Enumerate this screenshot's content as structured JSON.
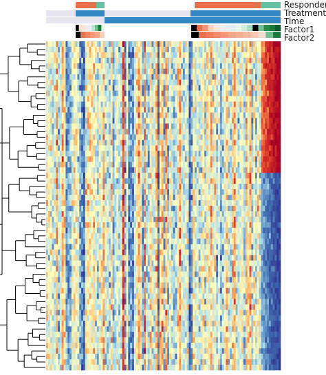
{
  "chart_data": {
    "type": "heatmap",
    "title": "",
    "xlabel": "",
    "ylabel": "",
    "annotation_tracks": [
      {
        "name": "Responder"
      },
      {
        "name": "Treatment"
      },
      {
        "name": "Time"
      },
      {
        "name": "Factor1"
      },
      {
        "name": "Factor2"
      }
    ],
    "n_rows": 60,
    "n_cols": 120,
    "row_clusters": [
      {
        "rows": [
          0,
          24
        ],
        "pattern": "warm body, cool right block"
      },
      {
        "rows": [
          24,
          60
        ],
        "pattern": "mixed body, warm right block"
      }
    ],
    "color_scale": [
      "#313695",
      "#4575b4",
      "#abd9e9",
      "#ffffbf",
      "#fdae61",
      "#d73027",
      "#a50026"
    ],
    "dendrogram": "row dendrogram on left; two main clusters"
  },
  "colors": {
    "responder": "#e8704a",
    "responder_alt": "#63c1a1",
    "treatment": "#2f86c0",
    "time_light": "#e6e4ee",
    "time_dark": "#2f86c0",
    "factor_low": "#fde0d2",
    "factor_high": "#e8704a",
    "factor_green": "#1b7a3a",
    "dendro": "#000000"
  }
}
